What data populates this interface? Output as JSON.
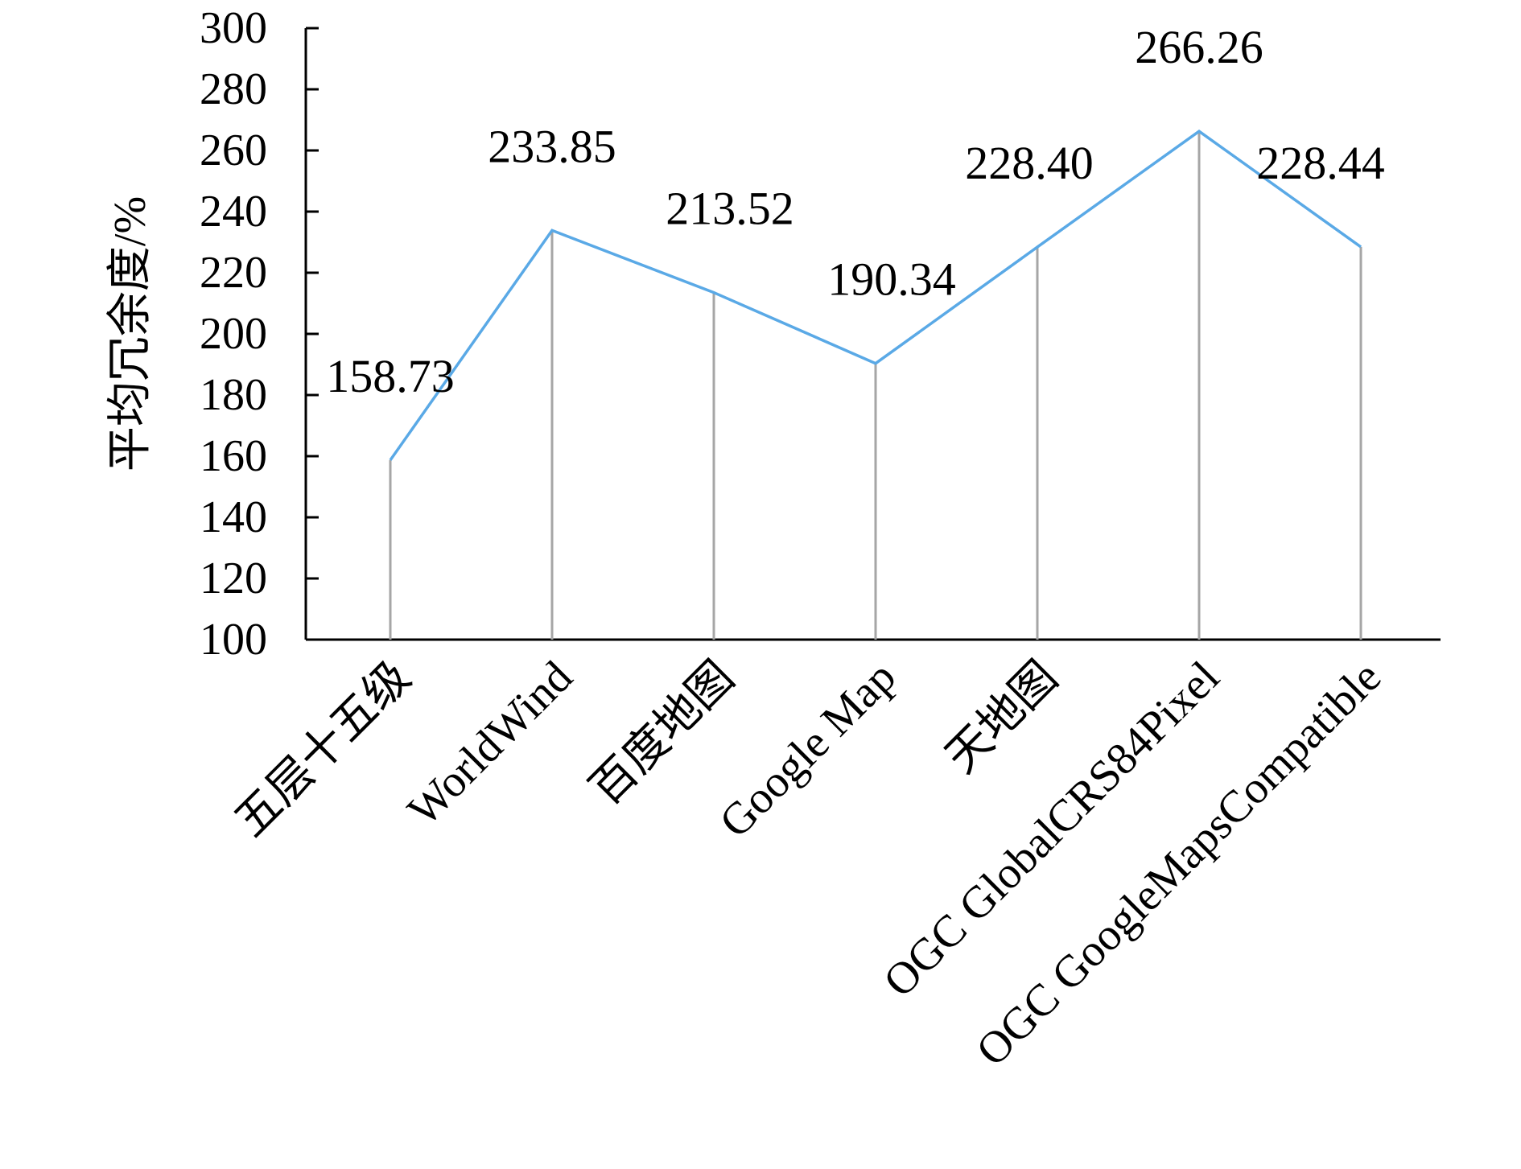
{
  "chart_data": {
    "type": "line",
    "title": "",
    "xlabel": "",
    "ylabel": "平均冗余度/%",
    "ylim": [
      100,
      300
    ],
    "yticks": [
      100,
      120,
      140,
      160,
      180,
      200,
      220,
      240,
      260,
      280,
      300
    ],
    "grid": false,
    "legend": "none",
    "categories": [
      "五层十五级",
      "WorldWind",
      "百度地图",
      "Google Map",
      "天地图",
      "OGC GlobalCRS84Pixel",
      "OGC GoogleMapsCompatible"
    ],
    "series": [
      {
        "values": [
          158.73,
          233.85,
          213.52,
          190.34,
          228.4,
          266.26,
          228.44
        ],
        "labels": [
          "158.73",
          "233.85",
          "213.52",
          "190.34",
          "228.40",
          "266.26",
          "228.44"
        ],
        "color": "#5aa9e6"
      }
    ],
    "drop_line_color": "#a6a6a6",
    "axis_color": "#000000"
  }
}
